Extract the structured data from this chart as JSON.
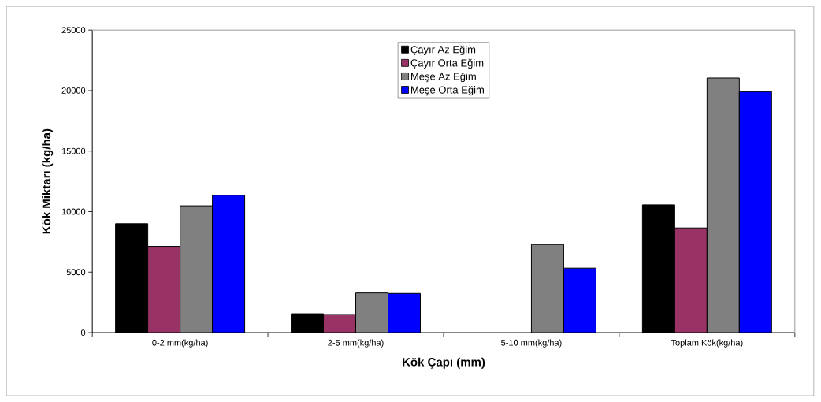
{
  "chart_data": {
    "type": "bar",
    "xlabel": "Kök Çapı (mm)",
    "ylabel": "Kök Miktarı (kg/ha)",
    "categories": [
      "0-2 mm(kg/ha)",
      "2-5 mm(kg/ha)",
      "5-10 mm(kg/ha)",
      "Toplam Kök(kg/ha)"
    ],
    "series": [
      {
        "name": "Çayır Az Eğim",
        "color": "#000000",
        "values": [
          9000,
          1560,
          null,
          10560
        ]
      },
      {
        "name": "Çayır  Orta Eğim",
        "color": "#993366",
        "values": [
          7130,
          1500,
          null,
          8650
        ]
      },
      {
        "name": "Meşe Az Eğim",
        "color": "#808080",
        "values": [
          10480,
          3280,
          7280,
          21040
        ]
      },
      {
        "name": "Meşe Orta Eğim",
        "color": "#0000ff",
        "values": [
          11350,
          3240,
          5330,
          19910
        ]
      }
    ],
    "ylim": [
      0,
      25000
    ],
    "yticks": [
      0,
      5000,
      10000,
      15000,
      20000,
      25000
    ],
    "legend": "top"
  }
}
